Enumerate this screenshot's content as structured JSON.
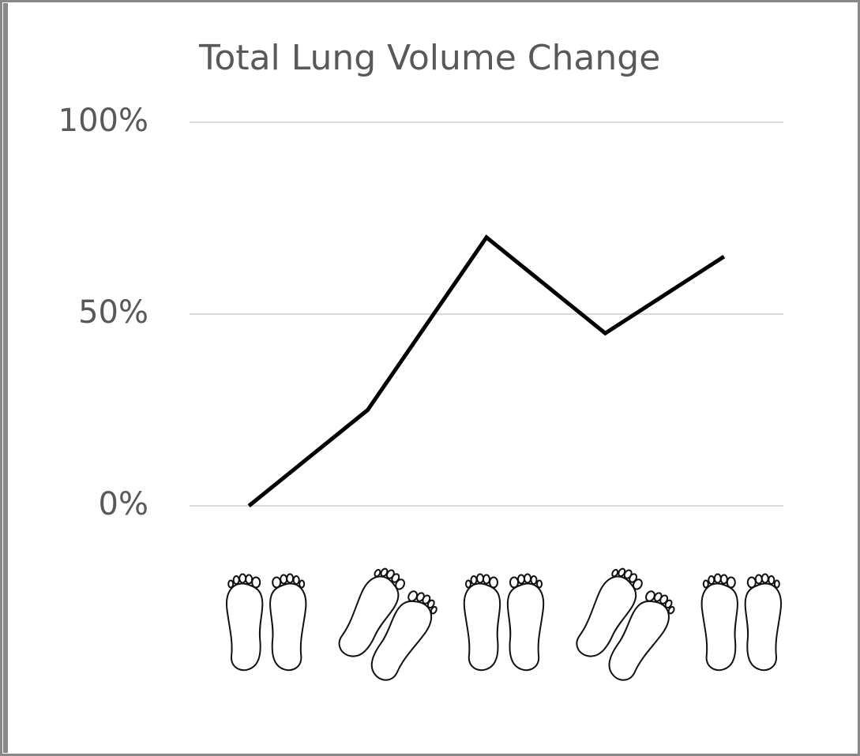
{
  "chart_data": {
    "type": "line",
    "title": "Total Lung Volume Change",
    "categories": [
      null,
      null,
      null,
      null,
      null
    ],
    "values": [
      0,
      25,
      70,
      45,
      65
    ],
    "color": "#000000",
    "ylim": [
      0,
      100
    ],
    "yticks": [
      {
        "value": 0,
        "label": "0%"
      },
      {
        "value": 50,
        "label": "50%"
      },
      {
        "value": 100,
        "label": "100%"
      }
    ],
    "grid": true
  }
}
